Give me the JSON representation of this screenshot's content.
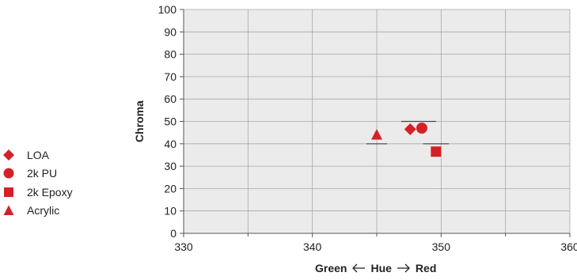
{
  "chart_data": {
    "type": "scatter",
    "title": "",
    "xlabel": {
      "left": "Green",
      "center": "Hue",
      "right": "Red"
    },
    "ylabel": "Chroma",
    "xlim": [
      330,
      360
    ],
    "ylim": [
      0,
      100
    ],
    "xticks": [
      330,
      340,
      350,
      360
    ],
    "yticks": [
      0,
      10,
      20,
      30,
      40,
      50,
      60,
      70,
      80,
      90,
      100
    ],
    "grid": true,
    "legend_position": "left",
    "marker_color": "#d42127",
    "series": [
      {
        "name": "LOA",
        "marker": "diamond",
        "points": [
          [
            347.6,
            46.5
          ]
        ]
      },
      {
        "name": "2k PU",
        "marker": "circle",
        "points": [
          [
            348.5,
            47.0
          ]
        ]
      },
      {
        "name": "2k Epoxy",
        "marker": "square",
        "points": [
          [
            349.6,
            36.5
          ]
        ]
      },
      {
        "name": "Acrylic",
        "marker": "triangle",
        "points": [
          [
            345.0,
            44.0
          ]
        ]
      }
    ],
    "reference_lines": [
      {
        "x1": 344.2,
        "x2": 345.8,
        "y": 40
      },
      {
        "x1": 346.9,
        "x2": 349.6,
        "y": 50
      },
      {
        "x1": 348.6,
        "x2": 350.6,
        "y": 40
      }
    ]
  }
}
